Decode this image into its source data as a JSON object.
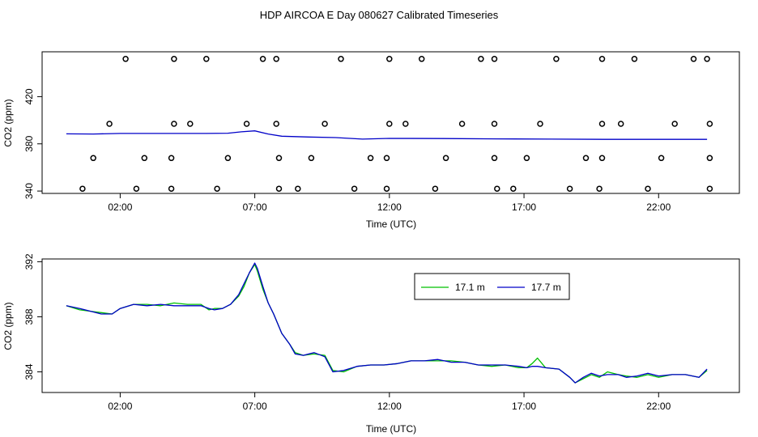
{
  "figure": {
    "title": "HDP AIRCOA E  Day 080627  Calibrated Timeseries",
    "legend": {
      "placement": "top-right inside bottom panel"
    }
  },
  "colors": {
    "green": "#00c000",
    "blue": "#0000c8",
    "frame": "#000000",
    "points": "#000000"
  },
  "chart_data": [
    {
      "type": "scatter",
      "panel": "top",
      "xlabel": "Time (UTC)",
      "ylabel": "CO2 (ppm)",
      "xlim": [
        -0.9,
        25.0
      ],
      "ylim": [
        338,
        458
      ],
      "xticks": [
        2,
        7,
        12,
        17,
        22
      ],
      "xtick_labels": [
        "02:00",
        "07:00",
        "12:00",
        "17:00",
        "22:00"
      ],
      "yticks": [
        340,
        380,
        420
      ],
      "ytick_labels": [
        "340",
        "380",
        "420"
      ],
      "grid": false,
      "line": {
        "color": "blue",
        "x": [
          0,
          1,
          2,
          3,
          4,
          5,
          6,
          6.5,
          7,
          7.5,
          8,
          9,
          10,
          11,
          12,
          14,
          16,
          18,
          20,
          22,
          23.8
        ],
        "y": [
          388.5,
          388.3,
          388.8,
          388.8,
          388.8,
          388.8,
          389.0,
          390.2,
          391.0,
          388.3,
          386.5,
          385.8,
          385.3,
          384.0,
          384.6,
          384.5,
          384.2,
          384.0,
          383.8,
          383.8,
          383.8
        ]
      },
      "points": {
        "x": [
          2.2,
          4.0,
          5.2,
          7.3,
          7.8,
          10.2,
          12.0,
          13.2,
          15.4,
          15.9,
          18.2,
          19.9,
          21.1,
          23.3,
          23.8,
          1.6,
          4.0,
          4.6,
          6.7,
          7.8,
          9.6,
          12.0,
          12.6,
          14.7,
          15.9,
          17.6,
          19.9,
          20.6,
          22.6,
          23.9,
          1.0,
          2.9,
          3.9,
          6.0,
          7.9,
          9.1,
          11.3,
          11.9,
          14.1,
          15.9,
          17.1,
          19.3,
          19.9,
          22.1,
          23.9,
          0.6,
          2.6,
          3.9,
          5.6,
          7.9,
          8.6,
          10.7,
          11.9,
          13.7,
          16.0,
          16.6,
          18.7,
          19.8,
          21.6,
          23.9
        ],
        "y": [
          452,
          452,
          452,
          452,
          452,
          452,
          452,
          452,
          452,
          452,
          452,
          452,
          452,
          452,
          452,
          397,
          397,
          397,
          397,
          397,
          397,
          397,
          397,
          397,
          397,
          397,
          397,
          397,
          397,
          397,
          368,
          368,
          368,
          368,
          368,
          368,
          368,
          368,
          368,
          368,
          368,
          368,
          368,
          368,
          368,
          342,
          342,
          342,
          342,
          342,
          342,
          342,
          342,
          342,
          342,
          342,
          342,
          342,
          342,
          342
        ]
      }
    },
    {
      "type": "line",
      "panel": "bottom",
      "xlabel": "Time (UTC)",
      "ylabel": "CO2 (ppm)",
      "xlim": [
        -0.9,
        25.0
      ],
      "ylim": [
        382.5,
        392.2
      ],
      "xticks": [
        2,
        7,
        12,
        17,
        22
      ],
      "xtick_labels": [
        "02:00",
        "07:00",
        "12:00",
        "17:00",
        "22:00"
      ],
      "yticks": [
        384,
        388,
        392
      ],
      "ytick_labels": [
        "384",
        "388",
        "392"
      ],
      "grid": false,
      "x": [
        0.0,
        0.5,
        0.9,
        1.3,
        1.7,
        2.0,
        2.5,
        3.0,
        3.5,
        4.0,
        4.5,
        5.0,
        5.3,
        5.5,
        5.8,
        6.1,
        6.4,
        6.6,
        6.8,
        7.0,
        7.1,
        7.3,
        7.5,
        7.7,
        8.0,
        8.3,
        8.5,
        8.8,
        9.2,
        9.6,
        9.9,
        10.3,
        10.8,
        11.3,
        11.8,
        12.3,
        12.8,
        13.3,
        13.8,
        14.3,
        14.8,
        15.3,
        15.8,
        16.3,
        16.8,
        17.1,
        17.3,
        17.5,
        17.8,
        18.3,
        18.7,
        18.9,
        19.2,
        19.5,
        19.8,
        20.1,
        20.5,
        20.8,
        21.2,
        21.6,
        22.0,
        22.5,
        23.0,
        23.5,
        23.8
      ],
      "series": [
        {
          "name": "17.1 m",
          "color": "green",
          "y": [
            388.8,
            388.5,
            388.4,
            388.3,
            388.2,
            388.6,
            388.9,
            388.9,
            388.8,
            389.0,
            388.9,
            388.9,
            388.5,
            388.6,
            388.6,
            388.9,
            389.5,
            390.2,
            391.2,
            391.8,
            391.3,
            390.0,
            389.0,
            388.2,
            386.8,
            386.0,
            385.4,
            385.2,
            385.3,
            385.2,
            384.1,
            384.0,
            384.4,
            384.5,
            384.5,
            384.6,
            384.8,
            384.8,
            384.8,
            384.8,
            384.7,
            384.5,
            384.4,
            384.5,
            384.3,
            384.3,
            384.6,
            385.0,
            384.3,
            384.2,
            383.6,
            383.2,
            383.5,
            383.8,
            383.6,
            384.0,
            383.8,
            383.7,
            383.6,
            383.8,
            383.6,
            383.8,
            383.8,
            383.6,
            384.1
          ]
        },
        {
          "name": "17.7 m",
          "color": "blue",
          "y": [
            388.8,
            388.6,
            388.4,
            388.2,
            388.2,
            388.6,
            388.9,
            388.8,
            388.9,
            388.8,
            388.8,
            388.8,
            388.6,
            388.5,
            388.6,
            388.9,
            389.6,
            390.4,
            391.2,
            391.9,
            391.5,
            390.2,
            389.0,
            388.2,
            386.8,
            386.0,
            385.3,
            385.2,
            385.4,
            385.1,
            384.0,
            384.1,
            384.4,
            384.5,
            384.5,
            384.6,
            384.8,
            384.8,
            384.9,
            384.7,
            384.7,
            384.5,
            384.5,
            384.5,
            384.4,
            384.3,
            384.4,
            384.4,
            384.3,
            384.2,
            383.6,
            383.2,
            383.6,
            383.9,
            383.7,
            383.8,
            383.8,
            383.6,
            383.7,
            383.9,
            383.7,
            383.8,
            383.8,
            383.6,
            384.2
          ]
        }
      ]
    }
  ]
}
